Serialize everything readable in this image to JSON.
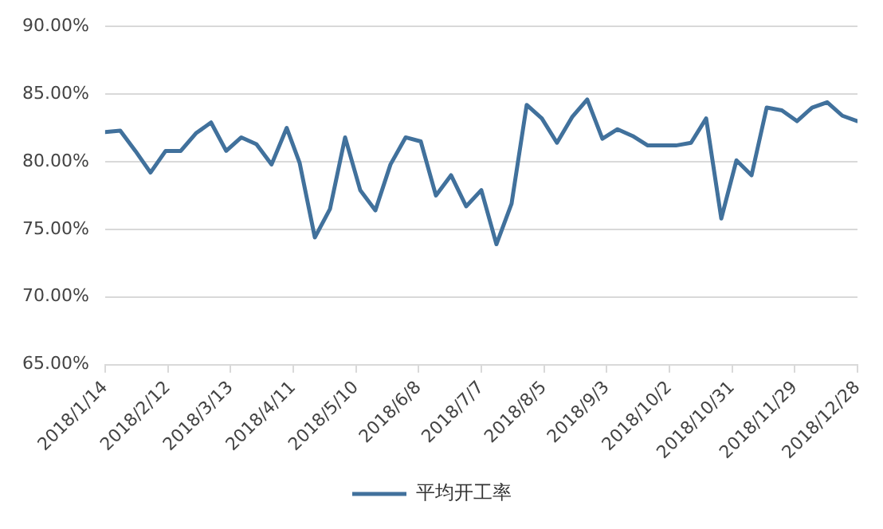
{
  "chart_data": {
    "type": "line",
    "x": [
      "2018-01-14",
      "2018-01-21",
      "2018-01-28",
      "2018-02-04",
      "2018-02-11",
      "2018-02-18",
      "2018-02-25",
      "2018-03-04",
      "2018-03-11",
      "2018-03-18",
      "2018-03-25",
      "2018-04-01",
      "2018-04-08",
      "2018-04-14",
      "2018-04-21",
      "2018-04-28",
      "2018-05-05",
      "2018-05-12",
      "2018-05-19",
      "2018-05-26",
      "2018-06-02",
      "2018-06-09",
      "2018-06-16",
      "2018-06-23",
      "2018-06-30",
      "2018-07-07",
      "2018-07-14",
      "2018-07-21",
      "2018-07-28",
      "2018-08-04",
      "2018-08-11",
      "2018-08-18",
      "2018-08-25",
      "2018-09-01",
      "2018-09-08",
      "2018-09-15",
      "2018-09-22",
      "2018-09-29",
      "2018-10-05",
      "2018-10-12",
      "2018-10-19",
      "2018-10-26",
      "2018-11-02",
      "2018-11-09",
      "2018-11-16",
      "2018-11-23",
      "2018-11-30",
      "2018-12-07",
      "2018-12-14",
      "2018-12-21",
      "2018-12-28"
    ],
    "series": [
      {
        "name": "平均开工率",
        "color": "#41719c",
        "values": [
          82.2,
          82.3,
          80.8,
          79.2,
          80.8,
          80.8,
          82.1,
          82.9,
          80.8,
          81.8,
          81.3,
          79.8,
          82.5,
          79.9,
          74.4,
          76.5,
          81.8,
          77.9,
          76.4,
          79.8,
          81.8,
          81.5,
          77.5,
          79.0,
          76.7,
          77.9,
          73.9,
          76.9,
          84.2,
          83.2,
          81.4,
          83.3,
          84.6,
          81.7,
          82.4,
          81.9,
          81.2,
          81.2,
          81.2,
          81.4,
          83.2,
          75.8,
          80.1,
          79.0,
          84.0,
          83.8,
          83.0,
          84.0,
          84.4,
          83.4,
          83.0
        ]
      }
    ],
    "xlim": [
      "2018-01-14",
      "2018-12-28"
    ],
    "xticks": [
      {
        "value": "2018-01-14",
        "label": "2018/1/14"
      },
      {
        "value": "2018-02-12",
        "label": "2018/2/12"
      },
      {
        "value": "2018-03-13",
        "label": "2018/3/13"
      },
      {
        "value": "2018-04-11",
        "label": "2018/4/11"
      },
      {
        "value": "2018-05-10",
        "label": "2018/5/10"
      },
      {
        "value": "2018-06-08",
        "label": "2018/6/8"
      },
      {
        "value": "2018-07-07",
        "label": "2018/7/7"
      },
      {
        "value": "2018-08-05",
        "label": "2018/8/5"
      },
      {
        "value": "2018-09-03",
        "label": "2018/9/3"
      },
      {
        "value": "2018-10-02",
        "label": "2018/10/2"
      },
      {
        "value": "2018-10-31",
        "label": "2018/10/31"
      },
      {
        "value": "2018-11-29",
        "label": "2018/11/29"
      },
      {
        "value": "2018-12-28",
        "label": "2018/12/28"
      }
    ],
    "ylim": [
      65,
      90
    ],
    "yticks": [
      {
        "value": 65,
        "label": "65.00%"
      },
      {
        "value": 70,
        "label": "70.00%"
      },
      {
        "value": 75,
        "label": "75.00%"
      },
      {
        "value": 80,
        "label": "80.00%"
      },
      {
        "value": 85,
        "label": "85.00%"
      },
      {
        "value": 90,
        "label": "90.00%"
      }
    ],
    "grid": "y",
    "legend": "bottom",
    "marker": "none",
    "line_style": "solid"
  }
}
